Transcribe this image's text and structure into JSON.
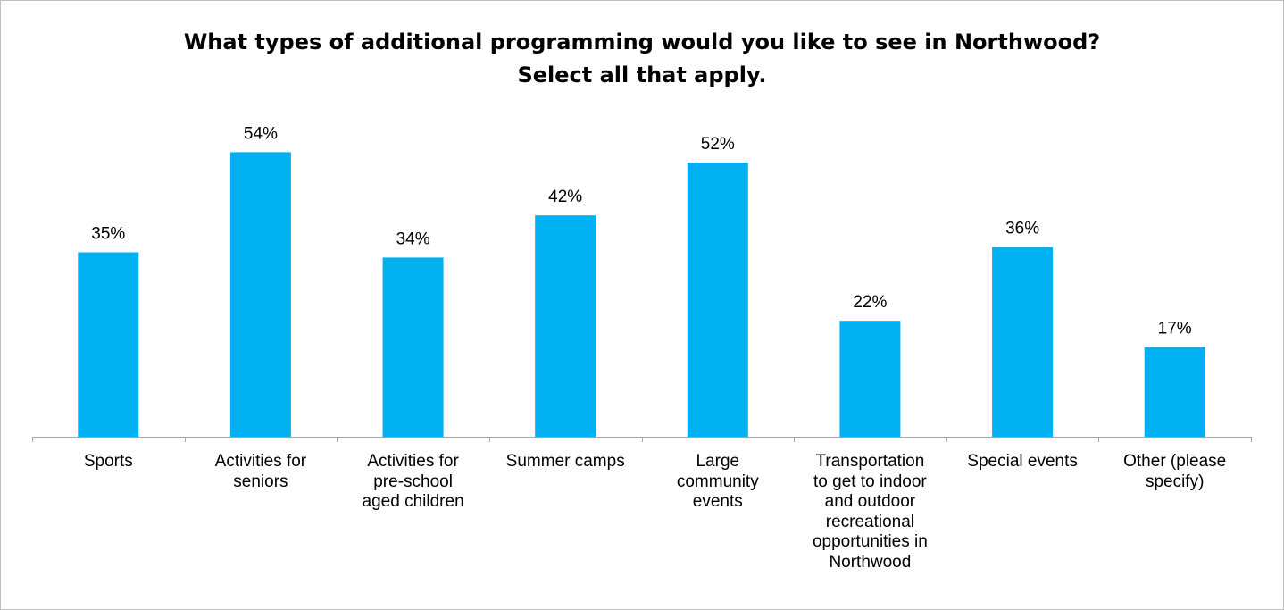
{
  "chart_data": {
    "type": "bar",
    "title": "What types of additional programming would you like to see in Northwood?",
    "subtitle": "Select all that apply.",
    "xlabel": "",
    "ylabel": "",
    "categories": [
      "Sports",
      "Activities for seniors",
      "Activities for pre-school aged children",
      "Summer camps",
      "Large community events",
      "Transportation to get to indoor and outdoor recreational opportunities in Northwood",
      "Special events",
      "Other (please specify)"
    ],
    "values": [
      35,
      54,
      34,
      42,
      52,
      22,
      36,
      17
    ],
    "value_labels": [
      "35%",
      "54%",
      "34%",
      "42%",
      "52%",
      "22%",
      "36%",
      "17%"
    ],
    "ylim": [
      0,
      60
    ],
    "grid": false,
    "legend": "none",
    "bar_color": "#00b0f0"
  },
  "category_display": [
    "Sports",
    "Activities for\nseniors",
    "Activities for\npre-school\naged children",
    "Summer camps",
    "Large\ncommunity\nevents",
    "Transportation\nto get to indoor\nand outdoor\nrecreational\nopportunities in\nNorthwood",
    "Special events",
    "Other (please\nspecify)"
  ]
}
